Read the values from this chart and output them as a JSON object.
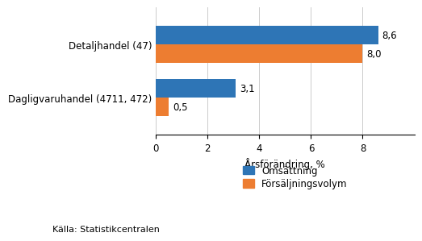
{
  "categories": [
    "Dagligvaruhandel (4711, 472)",
    "Detaljhandel (47)"
  ],
  "omsattning": [
    3.1,
    8.6
  ],
  "forsaljningsvolym": [
    0.5,
    8.0
  ],
  "bar_color_blue": "#2E75B6",
  "bar_color_orange": "#ED7D31",
  "xlabel": "Årsförändring, %",
  "xlim": [
    0,
    10
  ],
  "xticks": [
    0,
    2,
    4,
    6,
    8
  ],
  "legend_blue": "Omsättning",
  "legend_orange": "Försäljningsvolym",
  "source": "Källa: Statistikcentralen",
  "bar_height": 0.35,
  "label_fontsize": 8.5,
  "tick_fontsize": 8.5,
  "xlabel_fontsize": 8.5,
  "source_fontsize": 8
}
